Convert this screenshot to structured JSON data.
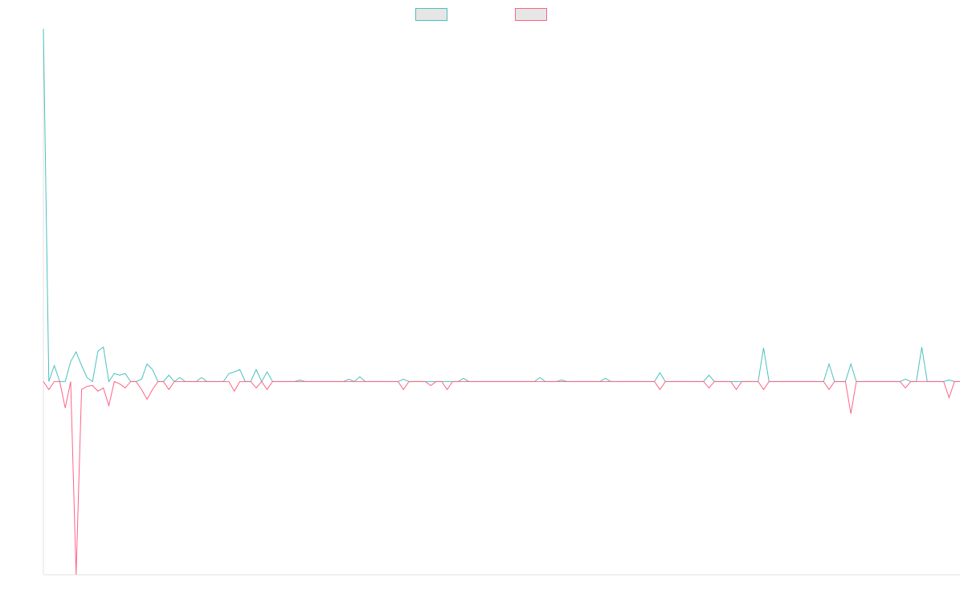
{
  "chart_data": {
    "type": "line",
    "ylim": [
      -241,
      440
    ],
    "legend": "top",
    "series": [
      {
        "color": "#4bc0c0",
        "values": [
          440,
          0,
          20,
          0,
          0,
          25,
          37,
          20,
          5,
          0,
          38,
          43,
          0,
          10,
          8,
          10,
          0,
          0,
          3,
          22,
          15,
          0,
          0,
          8,
          0,
          5,
          0,
          0,
          0,
          5,
          0,
          0,
          0,
          0,
          10,
          12,
          15,
          0,
          0,
          15,
          0,
          12,
          0,
          0,
          0,
          0,
          0,
          2,
          0,
          0,
          0,
          0,
          0,
          0,
          0,
          0,
          3,
          0,
          6,
          0,
          0,
          0,
          0,
          0,
          0,
          0,
          3,
          0,
          0,
          0,
          0,
          0,
          0,
          0,
          0,
          0,
          0,
          4,
          0,
          0,
          0,
          0,
          0,
          0,
          0,
          0,
          0,
          0,
          0,
          0,
          0,
          5,
          0,
          0,
          0,
          2,
          0,
          0,
          0,
          0,
          0,
          0,
          0,
          4,
          0,
          0,
          0,
          0,
          0,
          0,
          0,
          0,
          0,
          11,
          0,
          0,
          0,
          0,
          0,
          0,
          0,
          0,
          8,
          0,
          0,
          0,
          0,
          0,
          0,
          0,
          0,
          0,
          42,
          0,
          0,
          0,
          0,
          0,
          0,
          0,
          0,
          0,
          0,
          0,
          22,
          0,
          0,
          0,
          22,
          0,
          0,
          0,
          0,
          0,
          0,
          0,
          0,
          0,
          3,
          0,
          0,
          43,
          0,
          0,
          0,
          0,
          2,
          0,
          0
        ]
      },
      {
        "color": "#ff6384",
        "values": [
          0,
          -10,
          0,
          0,
          -33,
          0,
          -241,
          -10,
          -6,
          -5,
          -12,
          -8,
          -30,
          0,
          -3,
          -8,
          0,
          0,
          -10,
          -22,
          -10,
          0,
          0,
          -10,
          0,
          0,
          0,
          0,
          0,
          0,
          0,
          0,
          0,
          0,
          0,
          -12,
          0,
          0,
          0,
          -8,
          0,
          -10,
          0,
          0,
          0,
          0,
          0,
          0,
          0,
          0,
          0,
          0,
          0,
          0,
          0,
          0,
          0,
          0,
          0,
          0,
          0,
          0,
          0,
          0,
          0,
          0,
          -10,
          0,
          0,
          0,
          0,
          -5,
          0,
          0,
          -10,
          0,
          0,
          0,
          0,
          0,
          0,
          0,
          0,
          0,
          0,
          0,
          0,
          0,
          0,
          0,
          0,
          0,
          0,
          0,
          0,
          0,
          0,
          0,
          0,
          0,
          0,
          0,
          0,
          0,
          0,
          0,
          0,
          0,
          0,
          0,
          0,
          0,
          0,
          -10,
          0,
          0,
          0,
          0,
          0,
          0,
          0,
          0,
          -8,
          0,
          0,
          0,
          0,
          -10,
          0,
          0,
          0,
          0,
          -10,
          0,
          0,
          0,
          0,
          0,
          0,
          0,
          0,
          0,
          0,
          0,
          -10,
          0,
          0,
          0,
          -40,
          0,
          0,
          0,
          0,
          0,
          0,
          0,
          0,
          0,
          -8,
          0,
          0,
          0,
          0,
          0,
          0,
          0,
          -20,
          0,
          0
        ]
      }
    ]
  }
}
